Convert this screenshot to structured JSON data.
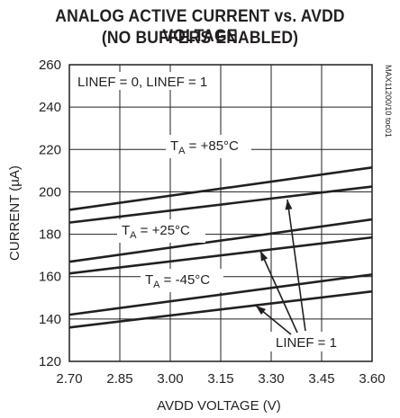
{
  "chart_data": {
    "type": "line",
    "title": "ANALOG ACTIVE CURRENT vs. AVDD VOLTAGE",
    "subtitle": "(NO BUFFERS ENABLED)",
    "xlabel": "AVDD VOLTAGE (V)",
    "ylabel": "CURRENT (µA)",
    "xlim": [
      2.7,
      3.6
    ],
    "ylim": [
      120,
      260
    ],
    "x_ticks": [
      "2.70",
      "2.85",
      "3.00",
      "3.15",
      "3.30",
      "3.45",
      "3.60"
    ],
    "y_ticks": [
      "120",
      "140",
      "160",
      "180",
      "200",
      "220",
      "240",
      "260"
    ],
    "grid": true,
    "series": [
      {
        "x": [
          2.7,
          3.6
        ],
        "y": [
          191.5,
          211.5
        ]
      },
      {
        "x": [
          2.7,
          3.6
        ],
        "y": [
          185.5,
          202.5
        ]
      },
      {
        "x": [
          2.7,
          3.6
        ],
        "y": [
          167,
          187
        ]
      },
      {
        "x": [
          2.7,
          3.6
        ],
        "y": [
          161.5,
          178.5
        ]
      },
      {
        "x": [
          2.7,
          3.6
        ],
        "y": [
          142,
          161
        ]
      },
      {
        "x": [
          2.7,
          3.6
        ],
        "y": [
          136,
          153
        ]
      }
    ],
    "annotations": {
      "condition": "LINEF = 0, LINEF = 1",
      "t85": {
        "main": "T",
        "sub": "A",
        "rest": " = +85°C"
      },
      "t25": {
        "main": "T",
        "sub": "A",
        "rest": " = +25°C"
      },
      "tm45": {
        "main": "T",
        "sub": "A",
        "rest": " = -45°C"
      },
      "linef1": "LINEF = 1",
      "code": "MAX11200/10 toc01"
    }
  }
}
